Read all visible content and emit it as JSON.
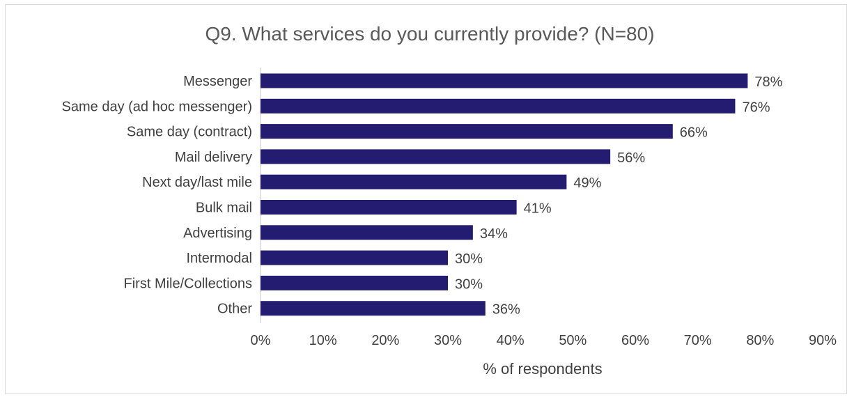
{
  "chart_data": {
    "type": "bar",
    "orientation": "horizontal",
    "title": "Q9. What services do you currently provide? (N=80)",
    "xlabel": "% of respondents",
    "ylabel": "",
    "categories": [
      "Messenger",
      "Same day (ad hoc messenger)",
      "Same day (contract)",
      "Mail delivery",
      "Next day/last mile",
      "Bulk mail",
      "Advertising",
      "Intermodal",
      "First Mile/Collections",
      "Other"
    ],
    "values": [
      78,
      76,
      66,
      56,
      49,
      41,
      34,
      30,
      30,
      36
    ],
    "data_labels": [
      "78%",
      "76%",
      "66%",
      "56%",
      "49%",
      "41%",
      "34%",
      "30%",
      "30%",
      "36%"
    ],
    "xlim": [
      0,
      90
    ],
    "xticks": [
      0,
      10,
      20,
      30,
      40,
      50,
      60,
      70,
      80,
      90
    ],
    "xtick_labels": [
      "0%",
      "10%",
      "20%",
      "30%",
      "40%",
      "50%",
      "60%",
      "70%",
      "80%",
      "90%"
    ],
    "grid": false,
    "legend": "none",
    "bar_color": "#231C70"
  }
}
